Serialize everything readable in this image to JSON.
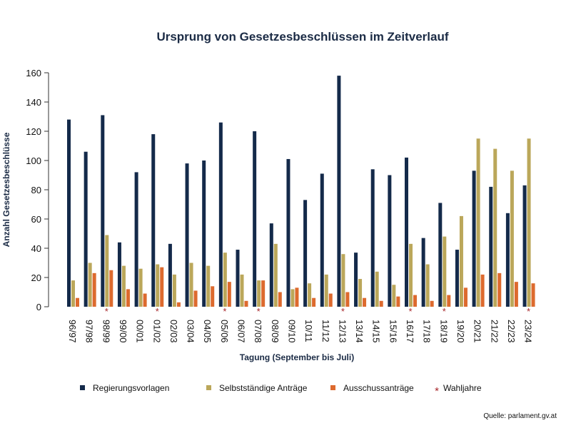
{
  "chart_data": {
    "type": "bar",
    "title": "Ursprung von Gesetzesbeschlüssen im Zeitverlauf",
    "xlabel": "Tagung (September bis Juli)",
    "ylabel": "Anzahl Gesetzesbeschlüsse",
    "ylim": [
      0,
      160
    ],
    "yticks": [
      0,
      20,
      40,
      60,
      80,
      100,
      120,
      140,
      160
    ],
    "grid": false,
    "legend_placement": "bottom",
    "categories": [
      "96/97",
      "97/98",
      "98/99",
      "99/00",
      "00/01",
      "01/02",
      "02/03",
      "03/04",
      "04/05",
      "05/06",
      "06/07",
      "07/08",
      "08/09",
      "09/10",
      "10/11",
      "11/12",
      "12/13",
      "13/14",
      "14/15",
      "15/16",
      "16/17",
      "17/18",
      "18/19",
      "19/20",
      "20/21",
      "21/22",
      "22/23",
      "23/24"
    ],
    "election_years": [
      "98/99",
      "01/02",
      "05/06",
      "07/08",
      "12/13",
      "16/17",
      "18/19",
      "23/24"
    ],
    "election_marker_label": "Wahljahre",
    "election_marker_color": "#a8282c",
    "series": [
      {
        "name": "Regierungsvorlagen",
        "color": "#142a4a",
        "values": [
          128,
          106,
          131,
          44,
          92,
          118,
          43,
          98,
          100,
          126,
          39,
          120,
          57,
          101,
          73,
          91,
          158,
          37,
          94,
          90,
          102,
          47,
          71,
          39,
          93,
          82,
          64,
          83
        ]
      },
      {
        "name": "Selbstständige Anträge",
        "color": "#bba75a",
        "values": [
          18,
          30,
          49,
          28,
          26,
          29,
          22,
          30,
          28,
          37,
          22,
          18,
          43,
          12,
          16,
          22,
          36,
          19,
          24,
          15,
          43,
          29,
          48,
          62,
          115,
          108,
          93,
          115
        ]
      },
      {
        "name": "Ausschussanträge",
        "color": "#dd6a2e",
        "values": [
          6,
          23,
          25,
          12,
          9,
          27,
          3,
          11,
          14,
          17,
          4,
          18,
          10,
          13,
          6,
          9,
          10,
          6,
          4,
          7,
          8,
          4,
          8,
          13,
          22,
          23,
          17,
          16
        ]
      }
    ]
  },
  "source": "Quelle: parlament.gv.at"
}
